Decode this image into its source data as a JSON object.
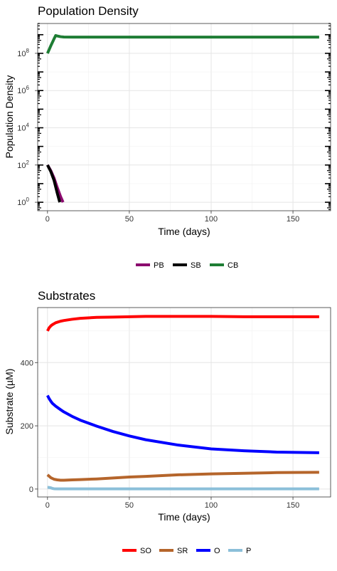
{
  "chart_data": [
    {
      "type": "line",
      "title": "Population Density",
      "xlabel": "Time (days)",
      "ylabel": "Population Density",
      "y_scale": "log10",
      "xlim": [
        -6,
        173
      ],
      "ylim": [
        0.35,
        4000000000.0
      ],
      "x_ticks": [
        0,
        50,
        100,
        150
      ],
      "y_ticks": [
        1,
        100,
        10000,
        1000000,
        100000000
      ],
      "y_tick_labels": [
        {
          "base": "10",
          "exp": "0"
        },
        {
          "base": "10",
          "exp": "2"
        },
        {
          "base": "10",
          "exp": "4"
        },
        {
          "base": "10",
          "exp": "6"
        },
        {
          "base": "10",
          "exp": "8"
        }
      ],
      "grid": true,
      "legend_position": "bottom",
      "series": [
        {
          "name": "PB",
          "color": "#8B0A6E",
          "x": [
            0,
            2,
            4,
            6,
            8,
            9.5
          ],
          "y": [
            100,
            50,
            20,
            6,
            2,
            1
          ]
        },
        {
          "name": "SB",
          "color": "#000000",
          "x": [
            0,
            2,
            4,
            6,
            7.5
          ],
          "y": [
            100,
            45,
            15,
            3,
            1
          ]
        },
        {
          "name": "CB",
          "color": "#1E7D34",
          "x": [
            0,
            2,
            4,
            5,
            6,
            8,
            10,
            15,
            20,
            40,
            60,
            80,
            100,
            120,
            140,
            166
          ],
          "y": [
            100000000,
            250000000,
            600000000,
            900000000,
            850000000,
            780000000,
            750000000,
            740000000,
            740000000,
            740000000,
            740000000,
            740000000,
            740000000,
            740000000,
            740000000,
            740000000
          ]
        }
      ]
    },
    {
      "type": "line",
      "title": "Substrates",
      "xlabel": "Time (days)",
      "ylabel": "Substrate (µM)",
      "xlim": [
        -6,
        173
      ],
      "ylim": [
        -25,
        574
      ],
      "x_ticks": [
        0,
        50,
        100,
        150
      ],
      "y_ticks": [
        0,
        200,
        400
      ],
      "grid": true,
      "legend_position": "bottom",
      "series": [
        {
          "name": "SO",
          "color": "#FF0000",
          "x": [
            0,
            1,
            2,
            3,
            5,
            8,
            10,
            15,
            20,
            30,
            40,
            50,
            60,
            80,
            100,
            120,
            140,
            166
          ],
          "y": [
            500,
            510,
            516,
            520,
            526,
            531,
            533,
            537,
            540,
            543,
            544,
            545,
            546,
            546,
            546,
            545,
            545,
            545
          ]
        },
        {
          "name": "SR",
          "color": "#B5652B",
          "x": [
            0,
            2,
            4,
            6,
            8,
            10,
            15,
            20,
            30,
            40,
            50,
            60,
            80,
            100,
            120,
            140,
            166
          ],
          "y": [
            45,
            36,
            31,
            29,
            28,
            28,
            29,
            30,
            32,
            35,
            38,
            40,
            45,
            48,
            50,
            52,
            53
          ]
        },
        {
          "name": "O",
          "color": "#0000FF",
          "x": [
            0,
            1,
            2,
            3,
            5,
            8,
            10,
            15,
            20,
            30,
            40,
            50,
            60,
            80,
            100,
            120,
            140,
            166
          ],
          "y": [
            296,
            286,
            278,
            271,
            262,
            251,
            244,
            230,
            218,
            199,
            182,
            168,
            156,
            139,
            127,
            121,
            117,
            115
          ]
        },
        {
          "name": "P",
          "color": "#8BBFD9",
          "x": [
            0,
            1,
            2,
            3,
            4,
            6,
            10,
            20,
            50,
            100,
            166
          ],
          "y": [
            5,
            5,
            4,
            2,
            1,
            0.5,
            0.5,
            0.5,
            0.5,
            0.5,
            0.5
          ]
        }
      ]
    }
  ]
}
